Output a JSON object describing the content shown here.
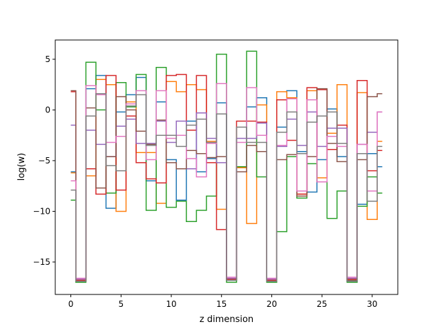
{
  "chart_data": {
    "type": "line",
    "style": "step",
    "xlabel": "z dimension",
    "ylabel": "log(w)",
    "xlim": [
      -1.55,
      32.55
    ],
    "ylim": [
      -18.2,
      6.9
    ],
    "xticks": [
      0,
      5,
      10,
      15,
      20,
      25,
      30
    ],
    "yticks": [
      5,
      0,
      -5,
      -10,
      -15
    ],
    "x": [
      0,
      1,
      2,
      3,
      4,
      5,
      6,
      7,
      8,
      9,
      10,
      11,
      12,
      13,
      14,
      15,
      16,
      17,
      18,
      19,
      20,
      21,
      22,
      23,
      24,
      25,
      26,
      27,
      28,
      29,
      30,
      31
    ],
    "series": [
      {
        "color": "#1f77b4",
        "values": [
          -6.1,
          -16.9,
          2.1,
          3.4,
          -9.7,
          -0.2,
          1.5,
          3.2,
          -7.0,
          0.8,
          -4.9,
          -8.9,
          -1.1,
          -6.1,
          -4.8,
          0.7,
          -16.8,
          -5.7,
          0.3,
          1.2,
          -16.9,
          -1.7,
          1.9,
          -4.1,
          -8.1,
          -4.9,
          0.1,
          -4.6,
          -16.9,
          -9.3,
          -4.3,
          -5.6
        ]
      },
      {
        "color": "#ff7f0e",
        "values": [
          -6.2,
          -16.8,
          -6.5,
          3.0,
          2.5,
          -10.0,
          0.8,
          -4.2,
          -4.2,
          -9.2,
          2.8,
          1.8,
          2.5,
          2.0,
          -3.1,
          -9.8,
          -16.7,
          -5.7,
          -11.2,
          0.5,
          -16.8,
          1.8,
          1.2,
          -8.3,
          1.9,
          -6.7,
          -2.3,
          2.5,
          -16.8,
          1.7,
          -10.8,
          -3.1
        ]
      },
      {
        "color": "#2ca02c",
        "values": [
          -8.9,
          -17.0,
          4.7,
          0.0,
          -8.2,
          2.7,
          0.3,
          3.5,
          -9.9,
          4.2,
          -9.6,
          -9.0,
          -11.0,
          -9.9,
          -8.5,
          5.5,
          -17.0,
          -5.6,
          5.8,
          -6.6,
          -17.0,
          -12.0,
          -4.6,
          -8.7,
          -5.3,
          -7.1,
          -10.7,
          -8.0,
          -17.0,
          -9.5,
          -6.6,
          -8.2
        ]
      },
      {
        "color": "#d62728",
        "values": [
          1.8,
          -16.8,
          -5.8,
          -8.3,
          3.4,
          -7.9,
          -0.6,
          -5.2,
          -6.8,
          -7.2,
          3.4,
          3.5,
          -2.0,
          3.4,
          -5.2,
          -11.8,
          -16.7,
          -1.1,
          -1.1,
          -1.2,
          -16.8,
          1.0,
          -3.0,
          -8.3,
          2.2,
          2.0,
          -3.9,
          -1.5,
          -16.7,
          2.9,
          -6.0,
          -4.0
        ]
      },
      {
        "color": "#9467bd",
        "values": [
          -1.5,
          -16.7,
          -2.0,
          -3.4,
          -4.6,
          -1.6,
          -0.9,
          -3.3,
          -3.3,
          -1.1,
          -3.2,
          -1.1,
          -5.8,
          -0.3,
          -2.8,
          -5.2,
          -16.6,
          -2.8,
          -2.8,
          -1.3,
          -16.7,
          -3.6,
          -0.9,
          -3.5,
          -0.2,
          -3.6,
          -1.8,
          -1.8,
          -16.6,
          -3.4,
          -2.2,
          -0.2
        ]
      },
      {
        "color": "#8c564b",
        "values": [
          1.9,
          -16.9,
          0.2,
          -7.7,
          -4.6,
          1.3,
          0.0,
          -2.1,
          -3.4,
          -1.0,
          -5.2,
          -5.8,
          -4.0,
          -4.3,
          -4.7,
          -4.6,
          -16.8,
          -6.1,
          -3.5,
          -4.1,
          -16.9,
          -4.9,
          -4.4,
          -8.5,
          -4.6,
          2.1,
          -3.3,
          -5.1,
          -16.8,
          -4.9,
          1.3,
          1.6
        ]
      },
      {
        "color": "#e377c2",
        "values": [
          -7.0,
          -16.6,
          2.4,
          1.5,
          -3.2,
          -2.6,
          0.6,
          1.9,
          -4.9,
          1.9,
          -2.8,
          -2.5,
          -4.8,
          -6.6,
          -3.3,
          2.6,
          -16.5,
          -3.2,
          2.2,
          -2.5,
          -16.6,
          -3.5,
          1.1,
          -8.0,
          1.0,
          -7.1,
          -2.6,
          -3.6,
          -16.5,
          -3.4,
          -8.0,
          -0.2
        ]
      },
      {
        "color": "#7f7f7f",
        "values": [
          -7.9,
          -16.9,
          -0.6,
          1.6,
          -5.5,
          -6.0,
          0.4,
          1.5,
          -3.5,
          -2.5,
          -2.5,
          -3.6,
          -1.5,
          -0.9,
          -3.2,
          -0.4,
          -16.8,
          -1.7,
          -3.2,
          -3.2,
          -16.9,
          -2.2,
          -0.2,
          -4.3,
          -1.2,
          -0.6,
          -0.2,
          -3.3,
          -16.9,
          -4.3,
          -9.0,
          -3.6
        ]
      }
    ]
  }
}
